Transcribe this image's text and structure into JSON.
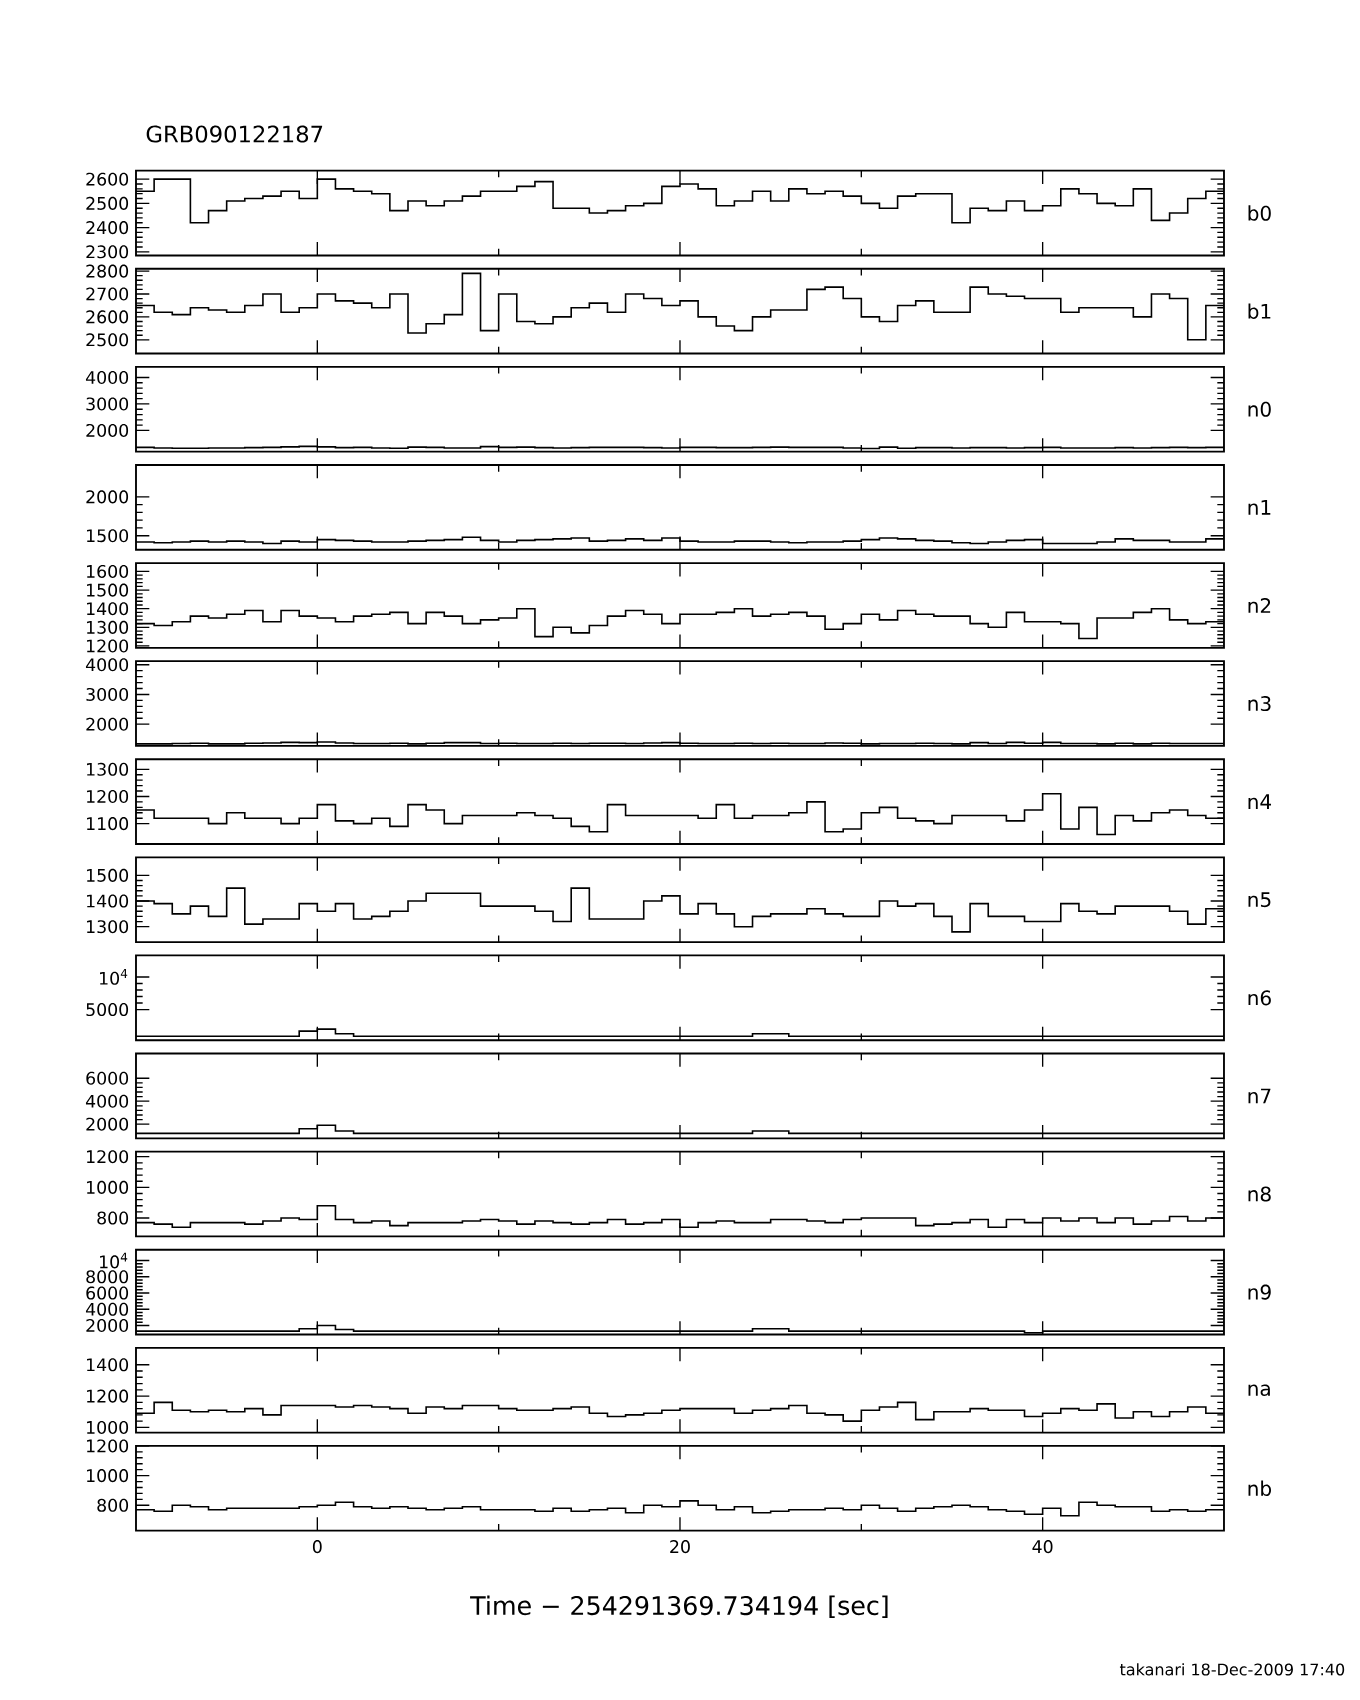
{
  "chart_data": [
    {
      "type": "histogram",
      "title": "GRB090122187",
      "color": "#000000",
      "tick_labels": "y",
      "annotations": [
        "b0"
      ],
      "xlim": [
        -10,
        50
      ],
      "xticks": [
        0,
        20,
        40
      ],
      "ylim": [
        2285,
        2635
      ],
      "yticks": [
        2300,
        2400,
        2500,
        2600
      ],
      "bins": [
        -10,
        -9,
        -8,
        -7,
        -6,
        -5,
        -4,
        -3,
        -2,
        -1,
        0,
        1,
        2,
        3,
        4,
        5,
        6,
        7,
        8,
        9,
        10,
        11,
        12,
        13,
        14,
        15,
        16,
        17,
        18,
        19,
        20,
        21,
        22,
        23,
        24,
        25,
        26,
        27,
        28,
        29,
        30,
        31,
        32,
        33,
        34,
        35,
        36,
        37,
        38,
        39,
        40,
        41,
        42,
        43,
        44,
        45,
        46,
        47,
        48,
        49,
        50
      ],
      "values": [
        2550,
        2600,
        2600,
        2420,
        2470,
        2510,
        2520,
        2530,
        2550,
        2520,
        2600,
        2560,
        2550,
        2540,
        2470,
        2510,
        2490,
        2510,
        2530,
        2550,
        2550,
        2570,
        2590,
        2480,
        2480,
        2460,
        2470,
        2490,
        2500,
        2570,
        2580,
        2560,
        2490,
        2510,
        2550,
        2510,
        2560,
        2540,
        2550,
        2530,
        2500,
        2480,
        2530,
        2540,
        2540,
        2420,
        2480,
        2470,
        2510,
        2470,
        2490,
        2560,
        2540,
        2500,
        2490,
        2560,
        2430,
        2460,
        2520,
        2550
      ]
    },
    {
      "type": "histogram",
      "color": "#000000",
      "tick_labels": "y",
      "annotations": [
        "b1"
      ],
      "xlim": [
        -10,
        50
      ],
      "xticks": [
        0,
        20,
        40
      ],
      "ylim": [
        2440,
        2810
      ],
      "yticks": [
        2500,
        2600,
        2700,
        2800
      ],
      "bins": [
        -10,
        -9,
        -8,
        -7,
        -6,
        -5,
        -4,
        -3,
        -2,
        -1,
        0,
        1,
        2,
        3,
        4,
        5,
        6,
        7,
        8,
        9,
        10,
        11,
        12,
        13,
        14,
        15,
        16,
        17,
        18,
        19,
        20,
        21,
        22,
        23,
        24,
        25,
        26,
        27,
        28,
        29,
        30,
        31,
        32,
        33,
        34,
        35,
        36,
        37,
        38,
        39,
        40,
        41,
        42,
        43,
        44,
        45,
        46,
        47,
        48,
        49,
        50
      ],
      "values": [
        2650,
        2620,
        2610,
        2640,
        2630,
        2620,
        2650,
        2700,
        2620,
        2640,
        2700,
        2670,
        2660,
        2640,
        2700,
        2530,
        2570,
        2610,
        2790,
        2540,
        2700,
        2580,
        2570,
        2600,
        2640,
        2660,
        2620,
        2700,
        2680,
        2650,
        2670,
        2600,
        2560,
        2540,
        2600,
        2630,
        2630,
        2720,
        2730,
        2680,
        2600,
        2580,
        2650,
        2670,
        2620,
        2620,
        2730,
        2700,
        2690,
        2680,
        2680,
        2620,
        2640,
        2640,
        2640,
        2600,
        2700,
        2680,
        2500,
        2650
      ]
    },
    {
      "type": "histogram",
      "color": "#000000",
      "tick_labels": "y",
      "annotations": [
        "n0"
      ],
      "xlim": [
        -10,
        50
      ],
      "xticks": [
        0,
        20,
        40
      ],
      "ylim": [
        1200,
        4400
      ],
      "yticks": [
        2000,
        3000,
        4000
      ],
      "bins": [
        -10,
        -9,
        -8,
        -7,
        -6,
        -5,
        -4,
        -3,
        -2,
        -1,
        0,
        1,
        2,
        3,
        4,
        5,
        6,
        7,
        8,
        9,
        10,
        11,
        12,
        13,
        14,
        15,
        16,
        17,
        18,
        19,
        20,
        21,
        22,
        23,
        24,
        25,
        26,
        27,
        28,
        29,
        30,
        31,
        32,
        33,
        34,
        35,
        36,
        37,
        38,
        39,
        40,
        41,
        42,
        43,
        44,
        45,
        46,
        47,
        48,
        49,
        50
      ],
      "values": [
        1360,
        1340,
        1330,
        1330,
        1340,
        1340,
        1350,
        1360,
        1380,
        1400,
        1380,
        1350,
        1360,
        1340,
        1330,
        1370,
        1360,
        1340,
        1340,
        1390,
        1360,
        1370,
        1350,
        1340,
        1350,
        1360,
        1360,
        1360,
        1350,
        1340,
        1360,
        1360,
        1350,
        1350,
        1360,
        1370,
        1360,
        1360,
        1360,
        1340,
        1320,
        1370,
        1330,
        1350,
        1350,
        1340,
        1350,
        1350,
        1340,
        1350,
        1360,
        1340,
        1340,
        1340,
        1350,
        1340,
        1350,
        1360,
        1350,
        1360
      ]
    },
    {
      "type": "histogram",
      "color": "#000000",
      "tick_labels": "y",
      "annotations": [
        "n1"
      ],
      "xlim": [
        -10,
        50
      ],
      "xticks": [
        0,
        20,
        40
      ],
      "ylim": [
        1320,
        2410
      ],
      "yticks": [
        1500,
        2000
      ],
      "bins": [
        -10,
        -9,
        -8,
        -7,
        -6,
        -5,
        -4,
        -3,
        -2,
        -1,
        0,
        1,
        2,
        3,
        4,
        5,
        6,
        7,
        8,
        9,
        10,
        11,
        12,
        13,
        14,
        15,
        16,
        17,
        18,
        19,
        20,
        21,
        22,
        23,
        24,
        25,
        26,
        27,
        28,
        29,
        30,
        31,
        32,
        33,
        34,
        35,
        36,
        37,
        38,
        39,
        40,
        41,
        42,
        43,
        44,
        45,
        46,
        47,
        48,
        49,
        50
      ],
      "values": [
        1420,
        1410,
        1420,
        1430,
        1420,
        1430,
        1420,
        1400,
        1430,
        1420,
        1450,
        1440,
        1430,
        1420,
        1420,
        1430,
        1440,
        1450,
        1480,
        1440,
        1420,
        1440,
        1450,
        1460,
        1470,
        1430,
        1440,
        1460,
        1440,
        1470,
        1430,
        1420,
        1420,
        1430,
        1430,
        1420,
        1410,
        1420,
        1420,
        1430,
        1450,
        1470,
        1460,
        1440,
        1430,
        1410,
        1400,
        1420,
        1440,
        1450,
        1400,
        1400,
        1400,
        1420,
        1460,
        1440,
        1440,
        1420,
        1420,
        1460
      ]
    },
    {
      "type": "histogram",
      "color": "#000000",
      "tick_labels": "y",
      "annotations": [
        "n2"
      ],
      "xlim": [
        -10,
        50
      ],
      "xticks": [
        0,
        20,
        40
      ],
      "ylim": [
        1190,
        1645
      ],
      "yticks": [
        1200,
        1300,
        1400,
        1500,
        1600
      ],
      "bins": [
        -10,
        -9,
        -8,
        -7,
        -6,
        -5,
        -4,
        -3,
        -2,
        -1,
        0,
        1,
        2,
        3,
        4,
        5,
        6,
        7,
        8,
        9,
        10,
        11,
        12,
        13,
        14,
        15,
        16,
        17,
        18,
        19,
        20,
        21,
        22,
        23,
        24,
        25,
        26,
        27,
        28,
        29,
        30,
        31,
        32,
        33,
        34,
        35,
        36,
        37,
        38,
        39,
        40,
        41,
        42,
        43,
        44,
        45,
        46,
        47,
        48,
        49,
        50
      ],
      "values": [
        1320,
        1310,
        1330,
        1360,
        1350,
        1370,
        1390,
        1330,
        1390,
        1360,
        1350,
        1330,
        1360,
        1370,
        1380,
        1320,
        1380,
        1360,
        1320,
        1340,
        1350,
        1400,
        1250,
        1300,
        1270,
        1310,
        1360,
        1390,
        1370,
        1320,
        1370,
        1370,
        1380,
        1400,
        1360,
        1370,
        1380,
        1360,
        1290,
        1320,
        1370,
        1340,
        1390,
        1370,
        1360,
        1360,
        1320,
        1300,
        1380,
        1330,
        1330,
        1320,
        1240,
        1350,
        1350,
        1380,
        1400,
        1340,
        1320,
        1330
      ]
    },
    {
      "type": "histogram",
      "color": "#000000",
      "tick_labels": "y",
      "annotations": [
        "n3"
      ],
      "xlim": [
        -10,
        50
      ],
      "xticks": [
        0,
        20,
        40
      ],
      "ylim": [
        1270,
        4120
      ],
      "yticks": [
        2000,
        3000,
        4000
      ],
      "bins": [
        -10,
        -9,
        -8,
        -7,
        -6,
        -5,
        -4,
        -3,
        -2,
        -1,
        0,
        1,
        2,
        3,
        4,
        5,
        6,
        7,
        8,
        9,
        10,
        11,
        12,
        13,
        14,
        15,
        16,
        17,
        18,
        19,
        20,
        21,
        22,
        23,
        24,
        25,
        26,
        27,
        28,
        29,
        30,
        31,
        32,
        33,
        34,
        35,
        36,
        37,
        38,
        39,
        40,
        41,
        42,
        43,
        44,
        45,
        46,
        47,
        48,
        49,
        50
      ],
      "values": [
        1340,
        1340,
        1350,
        1360,
        1340,
        1340,
        1360,
        1370,
        1390,
        1380,
        1400,
        1370,
        1350,
        1350,
        1360,
        1340,
        1360,
        1380,
        1380,
        1350,
        1360,
        1350,
        1350,
        1360,
        1350,
        1360,
        1360,
        1350,
        1370,
        1380,
        1360,
        1350,
        1350,
        1360,
        1350,
        1360,
        1350,
        1350,
        1370,
        1360,
        1340,
        1350,
        1350,
        1360,
        1350,
        1340,
        1380,
        1350,
        1390,
        1360,
        1390,
        1350,
        1350,
        1340,
        1360,
        1340,
        1360,
        1350,
        1350,
        1350
      ]
    },
    {
      "type": "histogram",
      "color": "#000000",
      "tick_labels": "y",
      "annotations": [
        "n4"
      ],
      "xlim": [
        -10,
        50
      ],
      "xticks": [
        0,
        20,
        40
      ],
      "ylim": [
        1025,
        1337
      ],
      "yticks": [
        1100,
        1200,
        1300
      ],
      "bins": [
        -10,
        -9,
        -8,
        -7,
        -6,
        -5,
        -4,
        -3,
        -2,
        -1,
        0,
        1,
        2,
        3,
        4,
        5,
        6,
        7,
        8,
        9,
        10,
        11,
        12,
        13,
        14,
        15,
        16,
        17,
        18,
        19,
        20,
        21,
        22,
        23,
        24,
        25,
        26,
        27,
        28,
        29,
        30,
        31,
        32,
        33,
        34,
        35,
        36,
        37,
        38,
        39,
        40,
        41,
        42,
        43,
        44,
        45,
        46,
        47,
        48,
        49,
        50
      ],
      "values": [
        1150,
        1120,
        1120,
        1120,
        1100,
        1140,
        1120,
        1120,
        1100,
        1120,
        1170,
        1110,
        1100,
        1120,
        1090,
        1170,
        1150,
        1100,
        1130,
        1130,
        1130,
        1140,
        1130,
        1120,
        1090,
        1070,
        1170,
        1130,
        1130,
        1130,
        1130,
        1120,
        1170,
        1120,
        1130,
        1130,
        1140,
        1180,
        1070,
        1080,
        1140,
        1160,
        1120,
        1110,
        1100,
        1130,
        1130,
        1130,
        1110,
        1150,
        1210,
        1080,
        1160,
        1060,
        1130,
        1110,
        1140,
        1150,
        1130,
        1120
      ]
    },
    {
      "type": "histogram",
      "color": "#000000",
      "tick_labels": "y",
      "annotations": [
        "n5"
      ],
      "xlim": [
        -10,
        50
      ],
      "xticks": [
        0,
        20,
        40
      ],
      "ylim": [
        1240,
        1570
      ],
      "yticks": [
        1300,
        1400,
        1500
      ],
      "bins": [
        -10,
        -9,
        -8,
        -7,
        -6,
        -5,
        -4,
        -3,
        -2,
        -1,
        0,
        1,
        2,
        3,
        4,
        5,
        6,
        7,
        8,
        9,
        10,
        11,
        12,
        13,
        14,
        15,
        16,
        17,
        18,
        19,
        20,
        21,
        22,
        23,
        24,
        25,
        26,
        27,
        28,
        29,
        30,
        31,
        32,
        33,
        34,
        35,
        36,
        37,
        38,
        39,
        40,
        41,
        42,
        43,
        44,
        45,
        46,
        47,
        48,
        49,
        50
      ],
      "values": [
        1400,
        1390,
        1350,
        1380,
        1340,
        1450,
        1310,
        1330,
        1330,
        1390,
        1360,
        1390,
        1330,
        1340,
        1360,
        1400,
        1430,
        1430,
        1430,
        1380,
        1380,
        1380,
        1360,
        1320,
        1450,
        1330,
        1330,
        1330,
        1400,
        1420,
        1350,
        1390,
        1350,
        1300,
        1340,
        1350,
        1350,
        1370,
        1350,
        1340,
        1340,
        1400,
        1380,
        1390,
        1340,
        1280,
        1390,
        1340,
        1340,
        1320,
        1320,
        1390,
        1360,
        1350,
        1380,
        1380,
        1380,
        1360,
        1310,
        1370
      ]
    },
    {
      "type": "histogram",
      "color": "#000000",
      "tick_labels": "y",
      "annotations": [
        "n6"
      ],
      "xlim": [
        -10,
        50
      ],
      "xticks": [
        0,
        20,
        40
      ],
      "ylim": [
        300,
        13300
      ],
      "yticks": [
        5000,
        {
          "value": 10000,
          "label": "10$^{4}$"
        }
      ],
      "bins": [
        -10,
        -9,
        -8,
        -7,
        -6,
        -5,
        -4,
        -3,
        -2,
        -1,
        0,
        1,
        2,
        3,
        4,
        5,
        6,
        7,
        8,
        9,
        10,
        11,
        12,
        13,
        14,
        15,
        16,
        17,
        18,
        19,
        20,
        21,
        22,
        23,
        24,
        25,
        26,
        27,
        28,
        29,
        30,
        31,
        32,
        33,
        34,
        35,
        36,
        37,
        38,
        39,
        40,
        41,
        42,
        43,
        44,
        45,
        46,
        47,
        48,
        49,
        50
      ],
      "values": [
        900,
        900,
        900,
        900,
        900,
        900,
        900,
        900,
        900,
        1700,
        2000,
        1300,
        900,
        900,
        900,
        900,
        900,
        900,
        900,
        900,
        900,
        900,
        900,
        900,
        900,
        900,
        900,
        900,
        900,
        900,
        900,
        900,
        900,
        900,
        1300,
        1300,
        900,
        900,
        900,
        900,
        900,
        900,
        900,
        900,
        900,
        900,
        900,
        900,
        900,
        900,
        900,
        900,
        900,
        900,
        900,
        900,
        900,
        900,
        900,
        900
      ]
    },
    {
      "type": "histogram",
      "color": "#000000",
      "tick_labels": "y",
      "annotations": [
        "n7"
      ],
      "xlim": [
        -10,
        50
      ],
      "xticks": [
        0,
        20,
        40
      ],
      "ylim": [
        770,
        8150
      ],
      "yticks": [
        2000,
        4000,
        6000
      ],
      "bins": [
        -10,
        -9,
        -8,
        -7,
        -6,
        -5,
        -4,
        -3,
        -2,
        -1,
        0,
        1,
        2,
        3,
        4,
        5,
        6,
        7,
        8,
        9,
        10,
        11,
        12,
        13,
        14,
        15,
        16,
        17,
        18,
        19,
        20,
        21,
        22,
        23,
        24,
        25,
        26,
        27,
        28,
        29,
        30,
        31,
        32,
        33,
        34,
        35,
        36,
        37,
        38,
        39,
        40,
        41,
        42,
        43,
        44,
        45,
        46,
        47,
        48,
        49,
        50
      ],
      "values": [
        1200,
        1200,
        1200,
        1200,
        1200,
        1200,
        1200,
        1200,
        1200,
        1600,
        1900,
        1400,
        1200,
        1200,
        1200,
        1200,
        1200,
        1200,
        1200,
        1200,
        1200,
        1200,
        1200,
        1200,
        1200,
        1200,
        1200,
        1200,
        1200,
        1200,
        1200,
        1200,
        1200,
        1200,
        1400,
        1400,
        1200,
        1200,
        1200,
        1200,
        1200,
        1200,
        1200,
        1200,
        1200,
        1200,
        1200,
        1200,
        1200,
        1200,
        1200,
        1200,
        1200,
        1200,
        1200,
        1200,
        1200,
        1200,
        1200,
        1200
      ]
    },
    {
      "type": "histogram",
      "color": "#000000",
      "tick_labels": "y",
      "annotations": [
        "n8"
      ],
      "xlim": [
        -10,
        50
      ],
      "xticks": [
        0,
        20,
        40
      ],
      "ylim": [
        680,
        1233
      ],
      "yticks": [
        800,
        1000,
        1200
      ],
      "bins": [
        -10,
        -9,
        -8,
        -7,
        -6,
        -5,
        -4,
        -3,
        -2,
        -1,
        0,
        1,
        2,
        3,
        4,
        5,
        6,
        7,
        8,
        9,
        10,
        11,
        12,
        13,
        14,
        15,
        16,
        17,
        18,
        19,
        20,
        21,
        22,
        23,
        24,
        25,
        26,
        27,
        28,
        29,
        30,
        31,
        32,
        33,
        34,
        35,
        36,
        37,
        38,
        39,
        40,
        41,
        42,
        43,
        44,
        45,
        46,
        47,
        48,
        49,
        50
      ],
      "values": [
        770,
        760,
        740,
        770,
        770,
        770,
        760,
        780,
        800,
        790,
        880,
        790,
        770,
        780,
        750,
        770,
        770,
        770,
        780,
        790,
        780,
        760,
        780,
        770,
        760,
        770,
        790,
        760,
        770,
        790,
        740,
        770,
        780,
        770,
        770,
        790,
        790,
        780,
        770,
        790,
        800,
        800,
        800,
        750,
        760,
        770,
        790,
        740,
        790,
        770,
        800,
        780,
        800,
        770,
        800,
        760,
        780,
        810,
        780,
        800
      ]
    },
    {
      "type": "histogram",
      "color": "#000000",
      "tick_labels": "y",
      "annotations": [
        "n9"
      ],
      "xlim": [
        -10,
        50
      ],
      "xticks": [
        0,
        20,
        40
      ],
      "ylim": [
        890,
        11330
      ],
      "yticks": [
        2000,
        4000,
        6000,
        8000,
        {
          "value": 10000,
          "label": "10$^{4}$"
        }
      ],
      "bins": [
        -10,
        -9,
        -8,
        -7,
        -6,
        -5,
        -4,
        -3,
        -2,
        -1,
        0,
        1,
        2,
        3,
        4,
        5,
        6,
        7,
        8,
        9,
        10,
        11,
        12,
        13,
        14,
        15,
        16,
        17,
        18,
        19,
        20,
        21,
        22,
        23,
        24,
        25,
        26,
        27,
        28,
        29,
        30,
        31,
        32,
        33,
        34,
        35,
        36,
        37,
        38,
        39,
        40,
        41,
        42,
        43,
        44,
        45,
        46,
        47,
        48,
        49,
        50
      ],
      "values": [
        1300,
        1300,
        1300,
        1300,
        1300,
        1300,
        1300,
        1300,
        1300,
        1600,
        2000,
        1500,
        1300,
        1300,
        1300,
        1300,
        1300,
        1300,
        1300,
        1300,
        1300,
        1300,
        1300,
        1300,
        1300,
        1300,
        1300,
        1300,
        1300,
        1300,
        1300,
        1300,
        1300,
        1300,
        1600,
        1600,
        1300,
        1300,
        1300,
        1300,
        1300,
        1300,
        1300,
        1300,
        1300,
        1300,
        1300,
        1300,
        1300,
        1100,
        1300,
        1300,
        1300,
        1300,
        1300,
        1300,
        1300,
        1300,
        1300,
        1300
      ]
    },
    {
      "type": "histogram",
      "color": "#000000",
      "tick_labels": "y",
      "annotations": [
        "na"
      ],
      "xlim": [
        -10,
        50
      ],
      "xticks": [
        0,
        20,
        40
      ],
      "ylim": [
        967,
        1508
      ],
      "yticks": [
        1000,
        1200,
        1400
      ],
      "bins": [
        -10,
        -9,
        -8,
        -7,
        -6,
        -5,
        -4,
        -3,
        -2,
        -1,
        0,
        1,
        2,
        3,
        4,
        5,
        6,
        7,
        8,
        9,
        10,
        11,
        12,
        13,
        14,
        15,
        16,
        17,
        18,
        19,
        20,
        21,
        22,
        23,
        24,
        25,
        26,
        27,
        28,
        29,
        30,
        31,
        32,
        33,
        34,
        35,
        36,
        37,
        38,
        39,
        40,
        41,
        42,
        43,
        44,
        45,
        46,
        47,
        48,
        49,
        50
      ],
      "values": [
        1090,
        1160,
        1110,
        1100,
        1110,
        1100,
        1120,
        1080,
        1140,
        1140,
        1140,
        1130,
        1140,
        1130,
        1120,
        1090,
        1130,
        1120,
        1140,
        1140,
        1120,
        1110,
        1110,
        1120,
        1130,
        1090,
        1070,
        1080,
        1090,
        1110,
        1120,
        1120,
        1120,
        1090,
        1110,
        1120,
        1140,
        1090,
        1080,
        1040,
        1110,
        1130,
        1160,
        1050,
        1100,
        1100,
        1120,
        1110,
        1110,
        1070,
        1090,
        1120,
        1110,
        1150,
        1060,
        1100,
        1070,
        1100,
        1130,
        1090
      ]
    },
    {
      "type": "histogram",
      "color": "#000000",
      "xlabel": "Time − 254291369.734194 [sec]",
      "annotations": [
        "nb",
        "takanari 18-Dec-2009 17:40"
      ],
      "xlim": [
        -10,
        50
      ],
      "xticks": [
        0,
        20,
        40
      ],
      "ylim": [
        629,
        1200
      ],
      "yticks": [
        800,
        1000,
        1200
      ],
      "bins": [
        -10,
        -9,
        -8,
        -7,
        -6,
        -5,
        -4,
        -3,
        -2,
        -1,
        0,
        1,
        2,
        3,
        4,
        5,
        6,
        7,
        8,
        9,
        10,
        11,
        12,
        13,
        14,
        15,
        16,
        17,
        18,
        19,
        20,
        21,
        22,
        23,
        24,
        25,
        26,
        27,
        28,
        29,
        30,
        31,
        32,
        33,
        34,
        35,
        36,
        37,
        38,
        39,
        40,
        41,
        42,
        43,
        44,
        45,
        46,
        47,
        48,
        49,
        50
      ],
      "values": [
        770,
        760,
        800,
        790,
        770,
        780,
        780,
        780,
        780,
        790,
        800,
        820,
        790,
        780,
        790,
        780,
        770,
        780,
        790,
        770,
        770,
        770,
        760,
        780,
        760,
        770,
        780,
        750,
        800,
        790,
        830,
        800,
        770,
        790,
        750,
        760,
        770,
        770,
        780,
        770,
        800,
        780,
        760,
        780,
        790,
        800,
        790,
        770,
        760,
        740,
        780,
        730,
        820,
        800,
        790,
        790,
        760,
        770,
        760,
        770
      ]
    }
  ]
}
